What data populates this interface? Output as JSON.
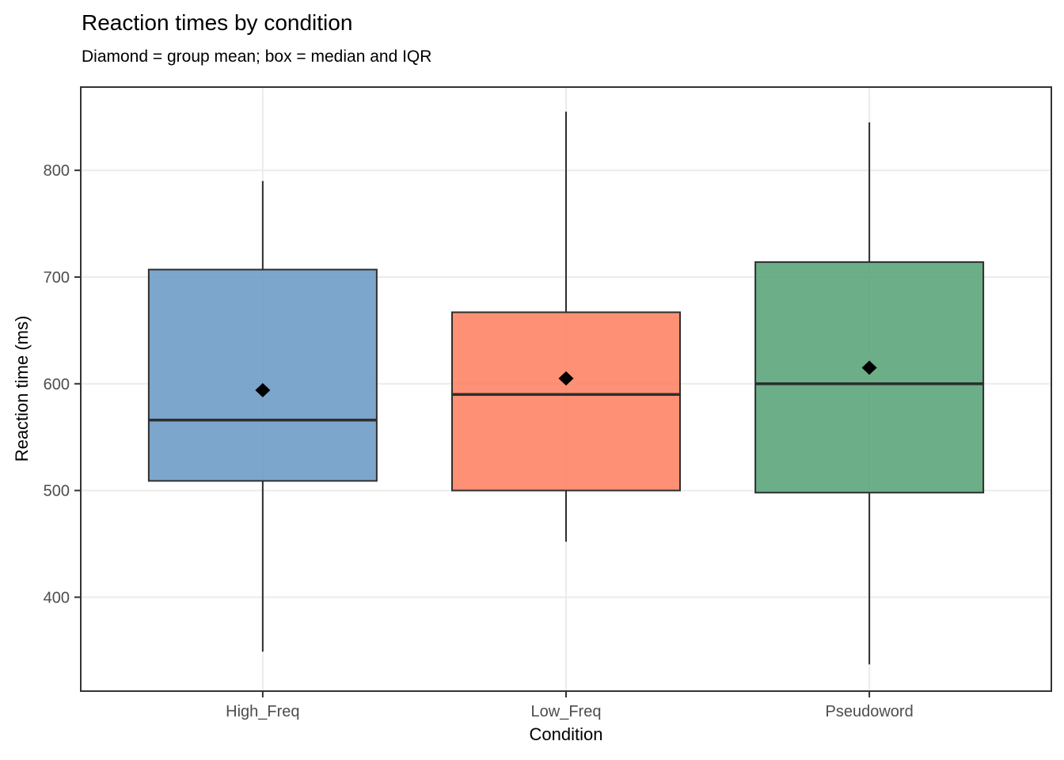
{
  "chart_data": {
    "type": "boxplot",
    "title": "Reaction times by condition",
    "subtitle": "Diamond = group mean; box = median and IQR",
    "xlabel": "Condition",
    "ylabel": "Reaction time (ms)",
    "categories": [
      "High_Freq",
      "Low_Freq",
      "Pseudoword"
    ],
    "y_ticks": [
      400,
      500,
      600,
      700,
      800
    ],
    "ylim": [
      312,
      878
    ],
    "legend": "none",
    "grid": "major horizontal lines at y ticks plus vertical line at each category center, minor grid off",
    "mean_marker_shape": "diamond",
    "fill_alpha": 0.9,
    "series": [
      {
        "name": "High_Freq",
        "whisker_low": 349,
        "q1": 509,
        "median": 566,
        "q3": 707,
        "whisker_high": 790,
        "mean": 594,
        "fill": "#6F9CC7"
      },
      {
        "name": "Low_Freq",
        "whisker_low": 452,
        "q1": 500,
        "median": 590,
        "q3": 667,
        "whisker_high": 855,
        "mean": 605,
        "fill": "#FD8466"
      },
      {
        "name": "Pseudoword",
        "whisker_low": 337,
        "q1": 498,
        "median": 600,
        "q3": 714,
        "whisker_high": 845,
        "mean": 615,
        "fill": "#5BA57B"
      }
    ],
    "colors": {
      "box_border": "#2E2E2E",
      "median_line": "#2E2E2E",
      "mean_marker": "#000000",
      "whisker": "#2E2E2E",
      "grid_line": "#EBEBEB",
      "panel_border": "#333333",
      "tick_mark": "#333333",
      "axis_tick_text": "#4D4D4D",
      "title_text": "#000000",
      "panel_background": "#FFFFFF"
    }
  }
}
